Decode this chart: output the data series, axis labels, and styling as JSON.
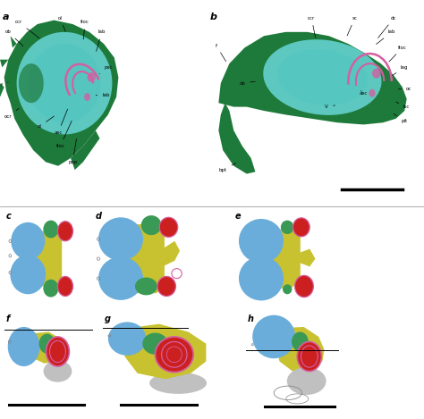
{
  "figure_width": 4.74,
  "figure_height": 4.69,
  "dpi": 100,
  "bg_color": "#ffffff",
  "colors": {
    "green_dark": "#1e7a3a",
    "teal": "#62d0cc",
    "pink": "#d45fa0",
    "blue": "#6aadda",
    "yellow_green": "#c8c230",
    "green_med": "#3a9a55",
    "red": "#cc2020",
    "gray_light": "#c0c0c0",
    "white": "#ffffff",
    "black": "#000000"
  }
}
